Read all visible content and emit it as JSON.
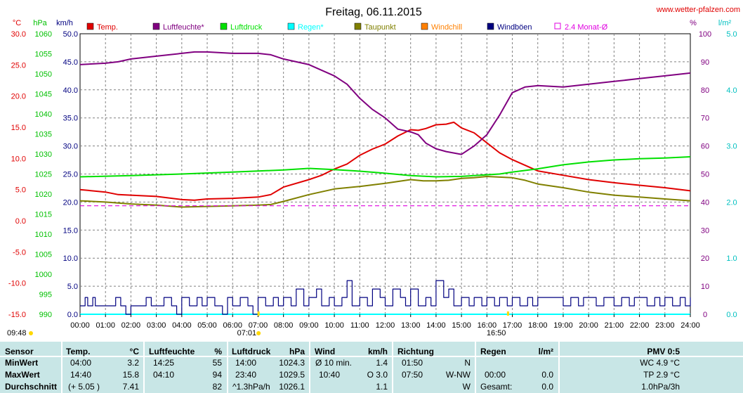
{
  "chart_data": {
    "type": "line",
    "title": "Freitag, 06.11.2015",
    "source": "www.wetter-pfalzen.com",
    "axes": {
      "temp": {
        "unit": "°C",
        "min": -15.0,
        "max": 30.0,
        "ticks": [
          "30.0",
          "25.0",
          "20.0",
          "15.0",
          "10.0",
          "5.0",
          "0.0",
          "-5.0",
          "-10.0",
          "-15.0"
        ],
        "color": "#e00000"
      },
      "pressure": {
        "unit": "hPa",
        "min": 990,
        "max": 1060,
        "ticks": [
          "1060",
          "1055",
          "1050",
          "1045",
          "1040",
          "1035",
          "1030",
          "1025",
          "1020",
          "1015",
          "1010",
          "1005",
          "1000",
          "995",
          "990"
        ],
        "color": "#00c000"
      },
      "wind": {
        "unit": "km/h",
        "min": 0.0,
        "max": 50.0,
        "ticks": [
          "50.0",
          "45.0",
          "40.0",
          "35.0",
          "30.0",
          "25.0",
          "20.0",
          "15.0",
          "10.0",
          "5.0",
          "0.0"
        ],
        "color": "#000080"
      },
      "humidity": {
        "unit": "%",
        "min": 0,
        "max": 100,
        "ticks": [
          "100",
          "90",
          "80",
          "70",
          "60",
          "50",
          "40",
          "30",
          "20",
          "10",
          "0"
        ],
        "color": "#800080"
      },
      "rain": {
        "unit": "l/m²",
        "min": 0.0,
        "max": 5.0,
        "ticks": [
          "5.0",
          "4.0",
          "3.0",
          "2.0",
          "1.0",
          "0.0"
        ],
        "color": "#00c0c0"
      }
    },
    "x_ticks": [
      "00:00",
      "01:00",
      "02:00",
      "03:00",
      "04:00",
      "05:00",
      "06:00",
      "07:00",
      "08:00",
      "09:00",
      "10:00",
      "11:00",
      "12:00",
      "13:00",
      "14:00",
      "15:00",
      "16:00",
      "17:00",
      "18:00",
      "19:00",
      "20:00",
      "21:00",
      "22:00",
      "23:00",
      "24:00"
    ],
    "xlim": [
      0,
      24
    ],
    "grid": true,
    "legend_position": "top",
    "legend": [
      {
        "name": "Temp.",
        "color": "#e00000",
        "style": "box"
      },
      {
        "name": "Luftfeuchte*",
        "color": "#800080",
        "style": "box"
      },
      {
        "name": "Luftdruck",
        "color": "#00e000",
        "style": "box"
      },
      {
        "name": "Regen*",
        "color": "#00ffff",
        "style": "box"
      },
      {
        "name": "Taupunkt",
        "color": "#808000",
        "style": "box"
      },
      {
        "name": "Windchill",
        "color": "#ff8000",
        "style": "box"
      },
      {
        "name": "Windböen",
        "color": "#000080",
        "style": "box"
      },
      {
        "name": "2.4 Monat-Ø",
        "color": "#e000e0",
        "style": "outline"
      }
    ],
    "sun_markers": [
      {
        "label": "09:48",
        "time": 0
      },
      {
        "label": "07:01",
        "time": 7.02
      },
      {
        "label": "16:50",
        "time": 16.83
      }
    ],
    "series": [
      {
        "name": "Temp.",
        "axis": "temp",
        "color": "#e00000",
        "x": [
          0,
          1,
          1.5,
          2,
          3,
          4,
          4.5,
          5,
          6,
          7,
          7.5,
          8,
          9,
          9.5,
          10,
          10.5,
          11,
          11.5,
          12,
          12.5,
          13,
          13.3,
          13.6,
          14,
          14.4,
          14.7,
          15,
          15.5,
          16,
          16.5,
          17,
          17.5,
          18,
          19,
          20,
          21,
          22,
          23,
          24
        ],
        "y": [
          5.0,
          4.6,
          4.2,
          4.1,
          3.9,
          3.4,
          3.3,
          3.5,
          3.6,
          3.8,
          4.2,
          5.4,
          6.6,
          7.3,
          8.3,
          9.1,
          10.5,
          11.5,
          12.3,
          13.6,
          14.6,
          14.5,
          14.8,
          15.4,
          15.5,
          15.8,
          14.9,
          14.1,
          12.5,
          10.9,
          9.8,
          8.9,
          8.0,
          7.3,
          6.6,
          6.1,
          5.7,
          5.3,
          4.8
        ]
      },
      {
        "name": "Luftfeuchte*",
        "axis": "humidity",
        "color": "#800080",
        "x": [
          0,
          1,
          1.5,
          2,
          3,
          4,
          4.5,
          5,
          6,
          7,
          7.5,
          8,
          9,
          9.5,
          10,
          10.5,
          11,
          11.5,
          12,
          12.5,
          13,
          13.3,
          13.6,
          14,
          14.4,
          14.7,
          15,
          15.5,
          16,
          16.5,
          17,
          17.5,
          18,
          19,
          20,
          21,
          22,
          23,
          24
        ],
        "y": [
          89,
          89.5,
          90,
          91,
          92,
          93,
          93.5,
          93.5,
          93,
          93,
          92.5,
          91,
          89,
          87,
          85,
          82,
          77,
          73,
          70,
          66,
          65,
          64,
          61,
          59,
          58,
          57.5,
          57,
          60,
          64,
          71,
          79,
          81,
          81.5,
          81,
          82,
          83,
          84,
          85,
          86
        ]
      },
      {
        "name": "Luftdruck",
        "axis": "pressure",
        "color": "#00e000",
        "x": [
          0,
          2,
          4,
          6,
          8,
          9,
          10,
          11,
          12,
          13,
          14,
          15,
          16,
          16.5,
          17,
          18,
          19,
          20,
          21,
          22,
          23,
          24
        ],
        "y": [
          1024.3,
          1024.6,
          1025.0,
          1025.5,
          1026.0,
          1026.4,
          1026.1,
          1025.7,
          1025.2,
          1024.6,
          1024.3,
          1024.4,
          1024.8,
          1025.0,
          1025.5,
          1026.3,
          1027.3,
          1028.0,
          1028.5,
          1028.8,
          1029.0,
          1029.3
        ]
      },
      {
        "name": "Taupunkt",
        "axis": "temp",
        "color": "#808000",
        "x": [
          0,
          1,
          2,
          3,
          4,
          5,
          6,
          7,
          7.5,
          8,
          9,
          10,
          11,
          12,
          13,
          13.5,
          14,
          14.5,
          15,
          15.5,
          16,
          17,
          17.5,
          18,
          19,
          20,
          21,
          22,
          23,
          24
        ],
        "y": [
          3.2,
          3.0,
          2.7,
          2.5,
          2.2,
          2.3,
          2.4,
          2.5,
          2.6,
          3.1,
          4.2,
          5.1,
          5.5,
          6.0,
          6.6,
          6.4,
          6.4,
          6.5,
          6.8,
          6.9,
          7.1,
          6.9,
          6.5,
          5.9,
          5.3,
          4.6,
          4.1,
          3.8,
          3.5,
          3.2
        ]
      },
      {
        "name": "2.4 Monat-Ø",
        "axis": "temp",
        "color": "#e000e0",
        "dashed": true,
        "x": [
          0,
          24
        ],
        "y": [
          2.4,
          2.4
        ]
      },
      {
        "name": "Regen*",
        "axis": "rain",
        "color": "#00ffff",
        "x": [
          0,
          24
        ],
        "y": [
          0.0,
          0.0
        ]
      },
      {
        "name": "Windböen",
        "axis": "wind",
        "color": "#000080",
        "step": true,
        "x": [
          0,
          0.2,
          0.3,
          0.5,
          0.6,
          0.8,
          1.0,
          1.2,
          1.4,
          1.6,
          1.8,
          2.0,
          2.3,
          2.6,
          2.8,
          3.0,
          3.3,
          3.6,
          3.8,
          4.0,
          4.3,
          4.6,
          4.8,
          5.0,
          5.3,
          5.6,
          5.8,
          6.0,
          6.3,
          6.6,
          6.8,
          7.0,
          7.3,
          7.6,
          7.8,
          8.0,
          8.3,
          8.5,
          8.8,
          9.0,
          9.3,
          9.5,
          9.8,
          10.0,
          10.3,
          10.5,
          10.7,
          11.0,
          11.3,
          11.5,
          11.8,
          12.0,
          12.3,
          12.6,
          12.8,
          13.0,
          13.3,
          13.6,
          13.8,
          14.0,
          14.3,
          14.5,
          14.7,
          15.0,
          15.3,
          15.5,
          15.8,
          16.0,
          16.3,
          16.5,
          16.8,
          17.0,
          17.3,
          17.6,
          17.8,
          18.0,
          18.5,
          19.0,
          19.3,
          19.6,
          19.8,
          20.0,
          20.3,
          20.6,
          20.8,
          21.0,
          21.3,
          21.6,
          21.8,
          22.0,
          22.3,
          22.6,
          22.8,
          23.0,
          23.3,
          23.6,
          23.8,
          24.0
        ],
        "y": [
          1.5,
          3.0,
          1.5,
          3.0,
          1.5,
          1.5,
          1.5,
          1.5,
          3.0,
          1.5,
          0.0,
          1.5,
          1.5,
          3.0,
          1.5,
          1.5,
          3.0,
          1.5,
          0.0,
          3.0,
          1.5,
          3.0,
          1.5,
          3.0,
          1.5,
          0.0,
          3.0,
          1.5,
          3.0,
          1.5,
          0.0,
          3.0,
          1.5,
          3.0,
          1.5,
          3.0,
          1.5,
          4.5,
          1.5,
          3.0,
          4.5,
          1.5,
          3.0,
          1.5,
          3.0,
          6.0,
          1.5,
          3.0,
          1.5,
          4.5,
          3.0,
          1.5,
          4.5,
          3.0,
          1.5,
          4.5,
          1.5,
          3.0,
          1.5,
          6.0,
          3.0,
          4.5,
          1.5,
          3.0,
          1.5,
          3.0,
          1.5,
          3.0,
          1.5,
          3.0,
          1.5,
          3.0,
          1.5,
          3.0,
          1.5,
          3.0,
          3.0,
          1.5,
          3.0,
          1.5,
          3.0,
          3.0,
          1.5,
          3.0,
          3.0,
          1.5,
          3.0,
          1.5,
          3.0,
          3.0,
          1.5,
          3.0,
          1.5,
          3.0,
          1.5,
          3.0,
          1.5,
          3.0
        ]
      }
    ]
  },
  "stats": {
    "header": {
      "sensor": "Sensor",
      "temp": "Temp.",
      "temp_unit": "°C",
      "hum": "Luftfeuchte",
      "hum_unit": "%",
      "press": "Luftdruck",
      "press_unit": "hPa",
      "wind": "Wind",
      "wind_unit": "km/h",
      "dir": "Richtung",
      "rain": "Regen",
      "rain_unit": "l/m²",
      "pmv": "PMV 0:5"
    },
    "rows": [
      {
        "label": "MinWert",
        "temp_time": "04:00",
        "temp_val": "3.2",
        "hum_time": "14:25",
        "hum_val": "55",
        "press_time": "14:00",
        "press_val": "1024.3",
        "wind_time": "Ø 10 min.",
        "wind_val": "1.4",
        "dir_time": "01:50",
        "dir_val": "N",
        "rain_time": "",
        "rain_val": "",
        "pmv": "WC 4.9 °C"
      },
      {
        "label": "MaxWert",
        "temp_time": "14:40",
        "temp_val": "15.8",
        "hum_time": "04:10",
        "hum_val": "94",
        "press_time": "23:40",
        "press_val": "1029.5",
        "wind_time": "10:40",
        "wind_val": "O 3.0",
        "dir_time": "07:50",
        "dir_val": "W-NW",
        "rain_time": "00:00",
        "rain_val": "0.0",
        "pmv": "TP 2.9 °C"
      },
      {
        "label": "Durchschnitt",
        "temp_time": "(+ 5.05 )",
        "temp_val": "7.41",
        "hum_time": "",
        "hum_val": "82",
        "press_time": "^1.3hPa/h",
        "press_val": "1026.1",
        "wind_time": "",
        "wind_val": "1.1",
        "dir_time": "",
        "dir_val": "W",
        "rain_time": "Gesamt:",
        "rain_val": "0.0",
        "pmv": "1.0hPa/3h"
      }
    ]
  }
}
